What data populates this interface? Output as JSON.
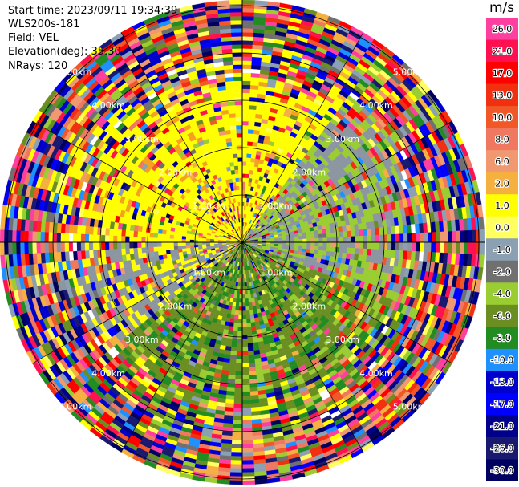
{
  "info": {
    "start_time": "Start time: 2023/09/11 19:34:39",
    "instrument": "WLS200s-181",
    "field": "Field: VEL",
    "elevation": "Elevation(deg): 35.30",
    "nrays": "NRays: 120"
  },
  "colorbar": {
    "unit": "m/s",
    "ticks": [
      "26.0",
      "21.0",
      "17.0",
      "13.0",
      "10.0",
      "8.0",
      "6.0",
      "2.0",
      "1.0",
      "0.0",
      "-1.0",
      "-2.0",
      "-4.0",
      "-6.0",
      "-8.0",
      "-10.0",
      "-13.0",
      "-17.0",
      "-21.0",
      "-26.0",
      "-30.0"
    ],
    "colors": [
      "#ff3fa0",
      "#ff1050",
      "#ff0000",
      "#f03010",
      "#f05828",
      "#f07860",
      "#f09870",
      "#f5b040",
      "#ffff00",
      "#ffff60",
      "#8ca0b4",
      "#707070",
      "#9acd32",
      "#6b8e23",
      "#228b22",
      "#1e90ff",
      "#0000cd",
      "#0000ff",
      "#00008b",
      "#191970",
      "#000060"
    ]
  },
  "chart_data": {
    "type": "heatmap",
    "projection": "polar-ppi",
    "field": "VEL",
    "unit": "m/s",
    "range_ring_labels": [
      "1.00km",
      "2.00km",
      "3.00km",
      "4.00km",
      "5.00km"
    ],
    "nrays": 120,
    "near_field_pattern": {
      "north_west_sector_velocity_ms": [
        1.0,
        2.0
      ],
      "north_east_sector_velocity_ms": [
        0.0,
        -1.0
      ],
      "south_sector_velocity_ms": [
        -2.0,
        -6.0
      ]
    }
  }
}
